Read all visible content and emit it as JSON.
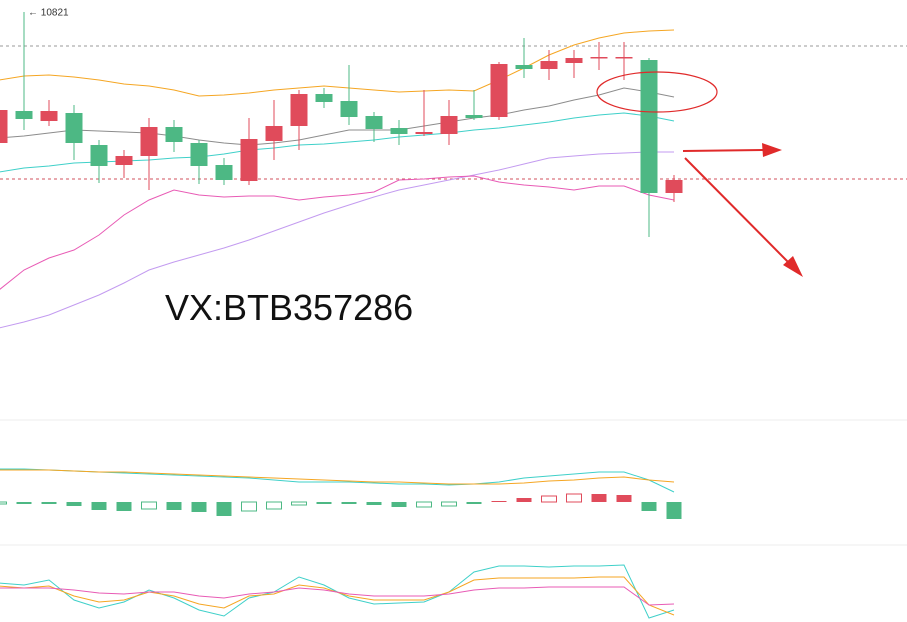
{
  "chart_data": [
    {
      "type": "candlestick",
      "ylim": [
        10005,
        10845
      ],
      "up_color": "#e04b5b",
      "down_color": "#4db884",
      "candles": {
        "open": [
          10559,
          10623,
          10603,
          10619,
          10555,
          10515,
          10533,
          10591,
          10559,
          10515,
          10483,
          10563,
          10593,
          10657,
          10643,
          10613,
          10589,
          10577,
          10577,
          10615,
          10611,
          10715,
          10707,
          10719,
          10729,
          10729,
          10725,
          10459
        ],
        "high": [
          10645,
          10821,
          10645,
          10635,
          10565,
          10545,
          10609,
          10605,
          10565,
          10529,
          10609,
          10645,
          10665,
          10669,
          10715,
          10621,
          10605,
          10665,
          10645,
          10665,
          10721,
          10769,
          10745,
          10745,
          10761,
          10761,
          10729,
          10495
        ],
        "low": [
          10545,
          10585,
          10593,
          10525,
          10479,
          10489,
          10465,
          10541,
          10477,
          10475,
          10475,
          10525,
          10545,
          10629,
          10595,
          10561,
          10555,
          10573,
          10555,
          10605,
          10605,
          10689,
          10685,
          10689,
          10705,
          10685,
          10371,
          10441
        ],
        "close": [
          10625,
          10607,
          10623,
          10559,
          10513,
          10533,
          10591,
          10561,
          10513,
          10485,
          10567,
          10593,
          10657,
          10641,
          10611,
          10587,
          10577,
          10581,
          10613,
          10609,
          10717,
          10707,
          10723,
          10729,
          10731,
          10731,
          10459,
          10485
        ]
      },
      "series": [
        {
          "color": "#f5a623",
          "values": [
            10685,
            10693,
            10695,
            10691,
            10685,
            10677,
            10673,
            10665,
            10653,
            10655,
            10659,
            10665,
            10669,
            10673,
            10669,
            10665,
            10661,
            10663,
            10665,
            10663,
            10685,
            10709,
            10735,
            10755,
            10769,
            10779,
            10783,
            10785
          ]
        },
        {
          "color": "#8c8c8c",
          "values": [
            10569,
            10573,
            10579,
            10585,
            10583,
            10581,
            10579,
            10573,
            10565,
            10559,
            10555,
            10559,
            10565,
            10575,
            10585,
            10585,
            10585,
            10593,
            10601,
            10609,
            10615,
            10625,
            10633,
            10645,
            10655,
            10669,
            10661,
            10651
          ]
        },
        {
          "color": "#3fd0c9",
          "values": [
            10501,
            10509,
            10513,
            10519,
            10521,
            10523,
            10525,
            10529,
            10531,
            10537,
            10545,
            10549,
            10555,
            10557,
            10561,
            10565,
            10571,
            10575,
            10579,
            10585,
            10589,
            10595,
            10601,
            10609,
            10615,
            10619,
            10613,
            10603
          ]
        },
        {
          "color": "#c39bf0",
          "values": [
            10189,
            10201,
            10215,
            10235,
            10255,
            10279,
            10305,
            10321,
            10335,
            10349,
            10365,
            10383,
            10401,
            10419,
            10435,
            10451,
            10465,
            10475,
            10485,
            10495,
            10505,
            10517,
            10529,
            10533,
            10537,
            10539,
            10541,
            10541
          ]
        },
        {
          "color": "#e85bb5",
          "values": [
            10265,
            10305,
            10329,
            10345,
            10375,
            10415,
            10445,
            10465,
            10455,
            10451,
            10453,
            10453,
            10445,
            10451,
            10455,
            10461,
            10485,
            10487,
            10491,
            10493,
            10481,
            10475,
            10471,
            10465,
            10473,
            10473,
            10455,
            10445
          ]
        }
      ],
      "hlines": {
        "values": [
          10753,
          10487
        ],
        "colors": [
          "#9a9a9a",
          "#d0505e"
        ]
      },
      "annotations": [
        {
          "text": "← 10821",
          "index": 1,
          "value": 10821
        }
      ],
      "watermark": "VX:BTB357286"
    },
    {
      "type": "macd",
      "ylim": [
        -43,
        82
      ],
      "values": [
        -2,
        -2,
        -2,
        -4,
        -8,
        -9,
        -7,
        -8,
        -10,
        -14,
        -9,
        -7,
        -3,
        -2,
        -2,
        -3,
        -5,
        -5,
        -4,
        -2,
        1,
        4,
        6,
        8,
        8,
        7,
        -9,
        -17
      ],
      "hollow": [
        true,
        false,
        false,
        false,
        false,
        false,
        true,
        false,
        false,
        false,
        true,
        true,
        true,
        false,
        false,
        false,
        false,
        true,
        true,
        false,
        false,
        false,
        true,
        true,
        false,
        false,
        false,
        false
      ],
      "up_color": "#e04b5b",
      "down_color": "#4db884",
      "series": [
        {
          "color": "#3fd0c9",
          "values": [
            33,
            33,
            32,
            31,
            30,
            29,
            28,
            27,
            26,
            25,
            24,
            22,
            20,
            20,
            20,
            19,
            18,
            18,
            17,
            18,
            20,
            24,
            26,
            28,
            30,
            30,
            22,
            10
          ]
        },
        {
          "color": "#f5a623",
          "values": [
            32,
            32,
            32,
            31,
            30,
            30,
            29,
            28,
            27,
            26,
            25,
            24,
            23,
            22,
            21,
            20,
            20,
            19,
            18,
            18,
            18,
            19,
            21,
            22,
            24,
            25,
            22,
            20
          ]
        }
      ]
    },
    {
      "type": "line",
      "ylim": [
        0,
        77
      ],
      "series": [
        {
          "color": "#3fd0c9",
          "values": [
            39,
            37,
            42,
            22,
            14,
            20,
            32,
            24,
            12,
            6,
            24,
            30,
            45,
            37,
            24,
            18,
            19,
            20,
            30,
            50,
            56,
            56,
            55,
            56,
            56,
            57,
            4,
            12
          ]
        },
        {
          "color": "#f5a623",
          "values": [
            36,
            34,
            36,
            26,
            20,
            22,
            30,
            26,
            18,
            14,
            26,
            28,
            37,
            34,
            26,
            22,
            22,
            22,
            30,
            42,
            44,
            44,
            44,
            44,
            45,
            45,
            17,
            7
          ]
        },
        {
          "color": "#e85bb5",
          "values": [
            34,
            34,
            34,
            32,
            29,
            28,
            30,
            30,
            26,
            24,
            28,
            30,
            34,
            32,
            28,
            26,
            26,
            26,
            28,
            32,
            34,
            34,
            35,
            35,
            35,
            35,
            17,
            18
          ]
        }
      ]
    }
  ]
}
